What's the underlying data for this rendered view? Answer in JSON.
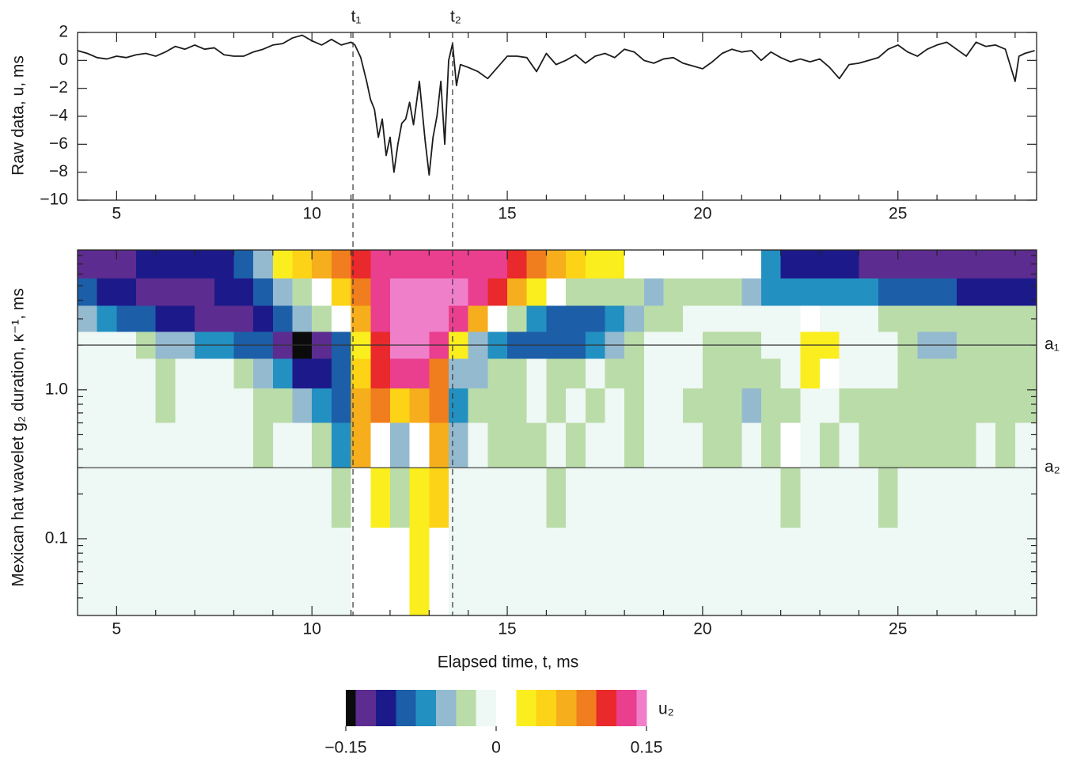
{
  "chart_data": [
    {
      "type": "line",
      "ylabel": "Raw data, u, ms",
      "color": "#1c1c1c",
      "xlim": [
        4,
        28.55
      ],
      "ylim": [
        -10,
        2
      ],
      "xticks": [
        5,
        10,
        15,
        20,
        25
      ],
      "xminorticks": [
        6,
        7,
        8,
        9,
        11,
        12,
        13,
        14,
        16,
        17,
        18,
        19,
        21,
        22,
        23,
        24,
        26,
        27,
        28
      ],
      "yticks": [
        {
          "value": -10,
          "label": "−10"
        },
        {
          "value": -8,
          "label": "−8"
        },
        {
          "value": -6,
          "label": "−6"
        },
        {
          "value": -4,
          "label": "−4"
        },
        {
          "value": -2,
          "label": "−2"
        },
        0,
        2
      ],
      "vlines": [
        {
          "label": "t₁",
          "x": 11.05
        },
        {
          "label": "t₂",
          "x": 13.6
        }
      ],
      "x": [
        4,
        4.25,
        4.5,
        4.75,
        5,
        5.25,
        5.5,
        5.75,
        6,
        6.25,
        6.5,
        6.75,
        7,
        7.25,
        7.5,
        7.75,
        8,
        8.25,
        8.5,
        8.75,
        9,
        9.25,
        9.5,
        9.75,
        10,
        10.25,
        10.5,
        10.75,
        11,
        11.1,
        11.25,
        11.4,
        11.5,
        11.6,
        11.7,
        11.8,
        11.9,
        12,
        12.1,
        12.2,
        12.3,
        12.4,
        12.5,
        12.6,
        12.75,
        12.9,
        13,
        13.1,
        13.2,
        13.3,
        13.4,
        13.5,
        13.6,
        13.7,
        13.8,
        14,
        14.25,
        14.5,
        14.75,
        15,
        15.25,
        15.5,
        15.75,
        16,
        16.25,
        16.5,
        16.75,
        17,
        17.25,
        17.5,
        17.75,
        18,
        18.25,
        18.5,
        18.75,
        19,
        19.25,
        19.5,
        19.75,
        20,
        20.25,
        20.5,
        20.75,
        21,
        21.25,
        21.5,
        21.75,
        22,
        22.25,
        22.5,
        22.75,
        23,
        23.25,
        23.5,
        23.75,
        24,
        24.25,
        24.5,
        24.75,
        25,
        25.25,
        25.5,
        25.75,
        26,
        26.25,
        26.5,
        26.75,
        27,
        27.25,
        27.5,
        27.75,
        28,
        28.1,
        28.25,
        28.5
      ],
      "values": [
        0.7,
        0.5,
        0.2,
        0.1,
        0.3,
        0.2,
        0.4,
        0.5,
        0.3,
        0.6,
        1.0,
        0.8,
        1.1,
        0.8,
        0.9,
        0.4,
        0.3,
        0.3,
        0.6,
        0.8,
        1.1,
        1.2,
        1.6,
        1.8,
        1.4,
        1.1,
        1.5,
        1.1,
        1.3,
        1.1,
        0.2,
        -1.5,
        -2.8,
        -3.5,
        -5.5,
        -4.2,
        -6.8,
        -5.5,
        -8.0,
        -6.0,
        -4.5,
        -4.2,
        -3.0,
        -4.6,
        -1.5,
        -5.8,
        -8.2,
        -5.5,
        -4.0,
        -1.5,
        -6.0,
        0.0,
        1.2,
        -1.8,
        -0.3,
        -0.5,
        -0.8,
        -1.3,
        -0.5,
        0.3,
        0.3,
        0.2,
        -0.8,
        0.5,
        -0.3,
        0.0,
        0.4,
        -0.2,
        0.3,
        0.5,
        0.2,
        0.8,
        0.6,
        0.0,
        -0.2,
        0.1,
        0.2,
        -0.2,
        -0.4,
        -0.6,
        -0.1,
        0.5,
        0.8,
        0.6,
        0.7,
        0.0,
        0.6,
        0.2,
        -0.1,
        0.1,
        -0.1,
        0.1,
        -0.5,
        -1.3,
        -0.3,
        -0.2,
        0.0,
        0.2,
        0.8,
        1.1,
        0.6,
        0.3,
        0.8,
        1.1,
        1.3,
        0.8,
        0.3,
        1.3,
        1.0,
        1.1,
        0.8,
        -1.5,
        0.3,
        0.5,
        0.7
      ]
    },
    {
      "type": "heatmap",
      "xlabel": "Elapsed time, t, ms",
      "ylabel": "Mexican hat wavelet g₂ duration, κ⁻¹, ms",
      "ylog": true,
      "xlim": [
        4,
        28.55
      ],
      "ylim": [
        0.0305,
        8.7
      ],
      "xticks": [
        5,
        10,
        15,
        20,
        25
      ],
      "xminorticks": [
        6,
        7,
        8,
        9,
        11,
        12,
        13,
        14,
        16,
        17,
        18,
        19,
        21,
        22,
        23,
        24,
        26,
        27,
        28
      ],
      "yticks": [
        {
          "value": 0.1,
          "label": "0.1"
        },
        {
          "value": 1,
          "label": "1.0"
        }
      ],
      "yminorticks": [
        0.04,
        0.05,
        0.06,
        0.07,
        0.08,
        0.09,
        0.2,
        0.3,
        0.4,
        0.5,
        0.6,
        0.7,
        0.8,
        0.9,
        2,
        3,
        4,
        5,
        6,
        7,
        8
      ],
      "hlines": [
        {
          "label": "a₁",
          "y": 2.0
        },
        {
          "label": "a₂",
          "y": 0.3
        }
      ],
      "x": [
        4.25,
        4.75,
        5.25,
        5.75,
        6.25,
        6.75,
        7.25,
        7.75,
        8.25,
        8.75,
        9.25,
        9.75,
        10.25,
        10.75,
        11.25,
        11.75,
        12.25,
        12.75,
        13.25,
        13.75,
        14.25,
        14.75,
        15.25,
        15.75,
        16.25,
        16.75,
        17.25,
        17.75,
        18.25,
        18.75,
        19.25,
        19.75,
        20.25,
        20.75,
        21.25,
        21.75,
        22.25,
        22.75,
        23.25,
        23.75,
        24.25,
        24.75,
        25.25,
        25.75,
        26.25,
        26.75,
        27.25,
        27.75,
        28.25
      ],
      "y": [
        7,
        4.5,
        3,
        2,
        1.3,
        0.8,
        0.45,
        0.2,
        0.07
      ],
      "z": [
        [
          -0.13,
          -0.13,
          -0.13,
          -0.11,
          -0.11,
          -0.11,
          -0.11,
          -0.11,
          -0.09,
          -0.05,
          0.03,
          0.05,
          0.07,
          0.09,
          0.11,
          0.13,
          0.13,
          0.13,
          0.13,
          0.13,
          0.13,
          0.13,
          0.11,
          0.09,
          0.07,
          0.05,
          0.03,
          0.03,
          0.01,
          0.01,
          0.01,
          0.01,
          0.01,
          0.01,
          0.01,
          -0.07,
          -0.11,
          -0.11,
          -0.11,
          -0.11,
          -0.13,
          -0.13,
          -0.13,
          -0.13,
          -0.13,
          -0.13,
          -0.13,
          -0.13,
          -0.13
        ],
        [
          -0.09,
          -0.11,
          -0.11,
          -0.13,
          -0.13,
          -0.13,
          -0.13,
          -0.11,
          -0.11,
          -0.09,
          -0.05,
          -0.03,
          0.01,
          0.05,
          0.09,
          0.13,
          0.145,
          0.145,
          0.145,
          0.145,
          0.13,
          0.11,
          0.07,
          0.03,
          0.01,
          -0.03,
          -0.03,
          -0.03,
          -0.03,
          -0.05,
          -0.03,
          -0.03,
          -0.03,
          -0.03,
          -0.05,
          -0.07,
          -0.07,
          -0.07,
          -0.07,
          -0.07,
          -0.07,
          -0.09,
          -0.09,
          -0.09,
          -0.09,
          -0.11,
          -0.11,
          -0.11,
          -0.11
        ],
        [
          -0.05,
          -0.07,
          -0.09,
          -0.09,
          -0.11,
          -0.11,
          -0.13,
          -0.13,
          -0.13,
          -0.11,
          -0.09,
          -0.05,
          -0.03,
          0.01,
          0.07,
          0.13,
          0.145,
          0.145,
          0.145,
          0.13,
          0.07,
          0.01,
          -0.03,
          -0.07,
          -0.09,
          -0.09,
          -0.09,
          -0.07,
          -0.05,
          -0.03,
          -0.03,
          -0.01,
          -0.01,
          -0.01,
          -0.01,
          -0.01,
          -0.01,
          0.01,
          -0.01,
          -0.01,
          -0.01,
          -0.03,
          -0.03,
          -0.03,
          -0.03,
          -0.03,
          -0.03,
          -0.03,
          -0.03
        ],
        [
          -0.01,
          -0.01,
          -0.01,
          -0.03,
          -0.05,
          -0.05,
          -0.07,
          -0.07,
          -0.09,
          -0.09,
          -0.13,
          -0.145,
          -0.13,
          -0.09,
          0.03,
          0.11,
          0.145,
          0.145,
          0.13,
          0.03,
          -0.05,
          -0.07,
          -0.09,
          -0.09,
          -0.09,
          -0.09,
          -0.07,
          -0.05,
          -0.03,
          -0.01,
          -0.01,
          -0.01,
          -0.03,
          -0.03,
          -0.03,
          -0.01,
          -0.01,
          0.03,
          0.03,
          -0.01,
          -0.01,
          -0.01,
          -0.03,
          -0.05,
          -0.05,
          -0.03,
          -0.03,
          -0.03,
          -0.03
        ],
        [
          -0.01,
          -0.01,
          -0.01,
          -0.01,
          -0.03,
          -0.01,
          -0.01,
          -0.01,
          -0.03,
          -0.05,
          -0.07,
          -0.11,
          -0.11,
          -0.09,
          0.05,
          0.11,
          0.13,
          0.13,
          0.09,
          -0.05,
          -0.05,
          -0.03,
          -0.03,
          -0.01,
          -0.03,
          -0.03,
          -0.01,
          -0.03,
          -0.03,
          -0.01,
          -0.01,
          -0.01,
          -0.03,
          -0.03,
          -0.03,
          -0.03,
          -0.01,
          0.03,
          0.01,
          -0.01,
          -0.01,
          -0.01,
          -0.03,
          -0.03,
          -0.03,
          -0.03,
          -0.03,
          -0.03,
          -0.03
        ],
        [
          -0.01,
          -0.01,
          -0.01,
          -0.01,
          -0.03,
          -0.01,
          -0.01,
          -0.01,
          -0.01,
          -0.03,
          -0.03,
          -0.05,
          -0.07,
          -0.09,
          0.07,
          0.09,
          0.05,
          0.07,
          0.09,
          -0.07,
          -0.03,
          -0.03,
          -0.03,
          -0.01,
          -0.03,
          -0.01,
          -0.03,
          -0.01,
          -0.03,
          -0.01,
          -0.01,
          -0.03,
          -0.03,
          -0.03,
          -0.05,
          -0.03,
          -0.03,
          -0.01,
          -0.01,
          -0.03,
          -0.03,
          -0.03,
          -0.03,
          -0.03,
          -0.03,
          -0.03,
          -0.03,
          -0.03,
          -0.03
        ],
        [
          -0.01,
          -0.01,
          -0.01,
          -0.01,
          -0.01,
          -0.01,
          -0.01,
          -0.01,
          -0.01,
          -0.03,
          -0.01,
          -0.01,
          -0.03,
          -0.07,
          0.07,
          0.01,
          -0.05,
          0.01,
          0.07,
          -0.05,
          -0.01,
          -0.03,
          -0.03,
          -0.03,
          -0.01,
          -0.03,
          -0.01,
          -0.01,
          -0.03,
          -0.01,
          -0.01,
          -0.01,
          -0.03,
          -0.03,
          -0.01,
          -0.03,
          0.01,
          -0.01,
          -0.03,
          -0.01,
          -0.03,
          -0.03,
          -0.03,
          -0.03,
          -0.03,
          -0.03,
          -0.01,
          -0.03,
          -0.01
        ],
        [
          -0.01,
          -0.01,
          -0.01,
          -0.01,
          -0.01,
          -0.01,
          -0.01,
          -0.01,
          -0.01,
          -0.01,
          -0.01,
          -0.01,
          -0.01,
          -0.03,
          0.01,
          0.03,
          -0.03,
          0.03,
          0.05,
          -0.01,
          -0.01,
          -0.01,
          -0.01,
          -0.01,
          -0.03,
          -0.01,
          -0.01,
          -0.01,
          -0.01,
          -0.01,
          -0.01,
          -0.01,
          -0.01,
          -0.01,
          -0.01,
          -0.01,
          -0.03,
          -0.01,
          -0.01,
          -0.01,
          -0.01,
          -0.03,
          -0.01,
          -0.01,
          -0.01,
          -0.01,
          -0.01,
          -0.01,
          -0.01
        ],
        [
          -0.01,
          -0.01,
          -0.01,
          -0.01,
          -0.01,
          -0.01,
          -0.01,
          -0.01,
          -0.01,
          -0.01,
          -0.01,
          -0.01,
          -0.01,
          -0.01,
          0.01,
          0.01,
          0.01,
          0.03,
          0.01,
          -0.01,
          -0.01,
          -0.01,
          -0.01,
          -0.01,
          -0.01,
          -0.01,
          -0.01,
          -0.01,
          -0.01,
          -0.01,
          -0.01,
          -0.01,
          -0.01,
          -0.01,
          -0.01,
          -0.01,
          -0.01,
          -0.01,
          -0.01,
          -0.01,
          -0.01,
          -0.01,
          -0.01,
          -0.01,
          -0.01,
          -0.01,
          -0.01,
          -0.01,
          -0.01
        ]
      ],
      "colorbar": {
        "label": "u₂",
        "levels": [
          -0.15,
          -0.14,
          -0.12,
          -0.1,
          -0.08,
          -0.06,
          -0.04,
          -0.02,
          0,
          0.02,
          0.04,
          0.06,
          0.08,
          0.1,
          0.12,
          0.14,
          0.15
        ],
        "colors": [
          "#0b0b0b",
          "#5c2c90",
          "#1c1a8a",
          "#1c5ea8",
          "#2390c2",
          "#94bad0",
          "#badca8",
          "#eef8f4",
          "#ffffff",
          "#fbee1e",
          "#fcd316",
          "#f6ae1c",
          "#f07e1e",
          "#e9292b",
          "#ea3e8f",
          "#f07fca"
        ],
        "ticks": [
          {
            "value": -0.15,
            "label": "−0.15"
          },
          0,
          0.15
        ]
      }
    }
  ]
}
